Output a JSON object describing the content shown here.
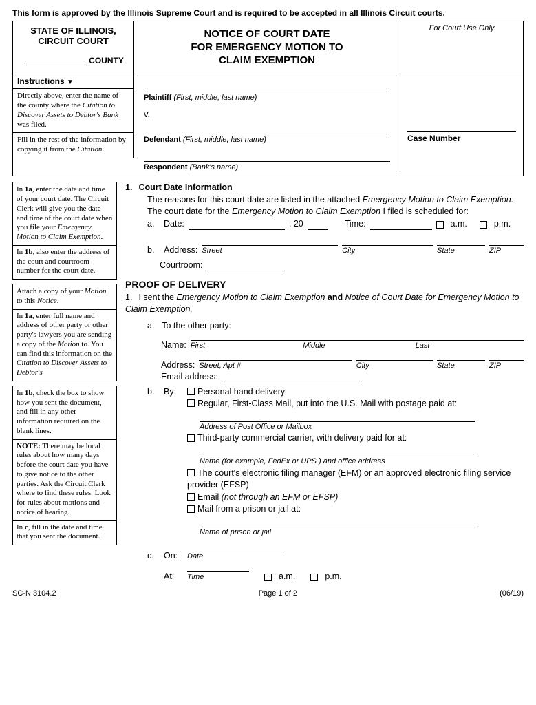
{
  "approval": "This form is approved by the Illinois Supreme Court and is required to be accepted in all Illinois Circuit courts.",
  "header": {
    "state": "STATE OF ILLINOIS,",
    "court": "CIRCUIT COURT",
    "county_label": "COUNTY",
    "title_l1": "NOTICE OF COURT DATE",
    "title_l2": "FOR EMERGENCY MOTION TO",
    "title_l3": "CLAIM EXEMPTION",
    "court_use": "For Court Use Only",
    "case_label": "Case Number"
  },
  "instructions_label": "Instructions",
  "inst1": "Directly above, enter the name of the county where the <i>Citation to Discover Assets to Debtor's Bank</i> was filed.",
  "inst2": "Fill in the rest of the information by copying it from the <i>Citation</i>.",
  "party": {
    "plaintiff_label": "Plaintiff",
    "plaintiff_hint": "(First, middle, last name)",
    "vs": "v.",
    "defendant_label": "Defendant",
    "defendant_hint": "(First, middle, last name)",
    "respondent_label": "Respondent",
    "respondent_hint": "(Bank's name)"
  },
  "side": {
    "s1": "In <b>1a</b>, enter the date and time of your court date. The Circuit Clerk will give you the date and time of the court date when you file your <i>Emergency Motion to Claim Exemption</i>.",
    "s2": "In <b>1b</b>, also enter the address of the court and courtroom number for the court date.",
    "s3": "Attach a copy of your <i>Motion</i> to this <i>Notice</i>.",
    "s4": "In <b>1a</b>, enter full name and address of other party or other party's lawyers you are sending a copy of the <i>Motion</i> to. You can find this information on the <i>Citation to Discover Assets to Debtor's</i>",
    "s5": "In <b>1b</b>, check the box to show how you sent the document, and fill in any other information required on the blank lines.",
    "s6": "<b>NOTE:</b> There may be local rules about how many days before the court date you have to give notice to the other parties. Ask the Circuit Clerk where to find these rules. Look for rules about motions and notice of hearing.",
    "s7": "In <b>c</b>, fill in the date and time that you sent the document."
  },
  "sec1": {
    "num": "1.",
    "title": "Court Date Information",
    "line1a": "The reasons for this court date are listed in the attached ",
    "line1b": "Emergency Motion to Claim Exemption.",
    "line2a": "The court date for the ",
    "line2b": "Emergency Motion to Claim Exemption",
    "line2c": " I filed is scheduled for:",
    "a": "a.",
    "date_label": "Date:",
    "year_prefix": ", 20",
    "time_label": "Time:",
    "am": "a.m.",
    "pm": "p.m.",
    "b": "b.",
    "addr_label": "Address:",
    "street": "Street",
    "city": "City",
    "state": "State",
    "zip": "ZIP",
    "courtroom": "Courtroom:"
  },
  "proof": {
    "title": "PROOF OF DELIVERY",
    "num": "1.",
    "l1a": "I sent the ",
    "l1b": "Emergency Motion to Claim Exemption",
    "l1c": " and ",
    "l1d": "Notice of Court Date for Emergency Motion to Claim Exemption.",
    "a": "a.",
    "to_other": "To the other party:",
    "name": "Name:",
    "first": "First",
    "middle": "Middle",
    "last": "Last",
    "address": "Address:",
    "street_apt": "Street, Apt #",
    "city": "City",
    "state": "State",
    "zip": "ZIP",
    "email": "Email address:",
    "b": "b.",
    "by": "By:",
    "opt1": "Personal hand delivery",
    "opt2": "Regular, First-Class Mail, put into the U.S. Mail with postage paid at:",
    "opt2_hint": "Address of Post Office or Mailbox",
    "opt3": "Third-party commercial carrier, with delivery paid for at:",
    "opt3_hint": "Name (for example, FedEx or UPS ) and office address",
    "opt4": "The court's electronic filing manager (EFM) or an approved electronic filing service provider (EFSP)",
    "opt5a": "Email ",
    "opt5b": "(not through an EFM or EFSP)",
    "opt6": "Mail from a prison or jail at:",
    "opt6_hint": "Name of prison or jail",
    "c": "c.",
    "on": "On:",
    "date_hint": "Date",
    "at": "At:",
    "time_hint": "Time",
    "am": "a.m.",
    "pm": "p.m."
  },
  "footer": {
    "form_no": "SC-N 3104.2",
    "page": "Page 1 of 2",
    "rev": "(06/19)"
  }
}
